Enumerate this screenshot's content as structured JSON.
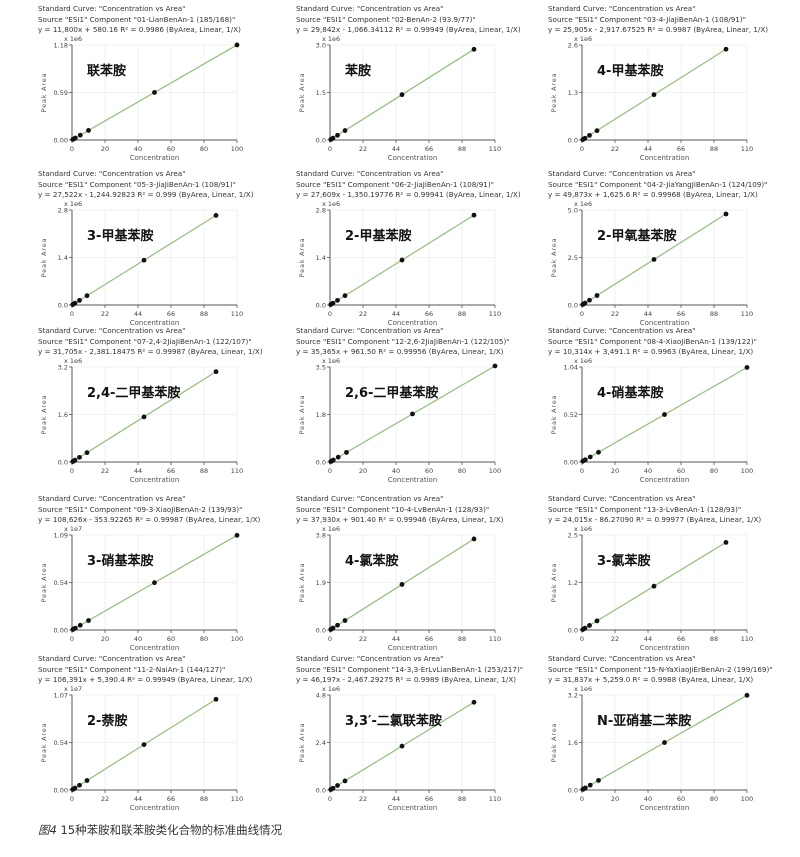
{
  "chart_data": [
    {
      "type": "scatter",
      "title": "Standard Curve: \"Concentration vs Area\"",
      "source": "Source \"ESI1\" Component \"01-LianBenAn-1 (185/168)\"",
      "equation": "y = 11,800x + 580.16   R² = 0.9986  (ByArea, Linear, 1/X)",
      "slope": 11800,
      "intercept": 580.16,
      "label": "联苯胺",
      "multiplier": "x 1e6",
      "scale": 1000000,
      "xlim": [
        0,
        100
      ],
      "xticks": [
        "0",
        "20",
        "40",
        "60",
        "80",
        "100"
      ],
      "ylim": [
        0,
        1.18
      ],
      "yticks": [
        "0.00",
        "0.59",
        "1.18"
      ],
      "x": [
        0.5,
        1,
        2,
        5,
        10,
        50,
        100
      ],
      "xlabel": "Concentration",
      "ylabel": "Peak Area"
    },
    {
      "type": "scatter",
      "title": "Standard Curve: \"Concentration vs Area\"",
      "source": "Source \"ESI1\" Component \"02-BenAn-2 (93.9/77)\"",
      "equation": "y = 29,842x - 1,066.34112   R² = 0.99949  (ByArea, Linear, 1/X)",
      "slope": 29842,
      "intercept": -1066.34,
      "label": "苯胺",
      "multiplier": "x 1e6",
      "scale": 1000000,
      "xlim": [
        0,
        110
      ],
      "xticks": [
        "0",
        "22",
        "44",
        "66",
        "88",
        "110"
      ],
      "ylim": [
        0,
        3.0
      ],
      "yticks": [
        "0.0",
        "1.5",
        "3.0"
      ],
      "x": [
        0.5,
        1,
        2,
        5,
        10,
        48,
        96
      ],
      "xlabel": "Concentration",
      "ylabel": "Peak Area"
    },
    {
      "type": "scatter",
      "title": "Standard Curve: \"Concentration vs Area\"",
      "source": "Source \"ESI1\" Component \"03-4-JiaJiBenAn-1 (108/91)\"",
      "equation": "y = 25,905x - 2,917.67525   R² = 0.9987  (ByArea, Linear, 1/X)",
      "slope": 25905,
      "intercept": -2917.68,
      "label": "4-甲基苯胺",
      "multiplier": "x 1e6",
      "scale": 1000000,
      "xlim": [
        0,
        110
      ],
      "xticks": [
        "0",
        "22",
        "44",
        "66",
        "88",
        "110"
      ],
      "ylim": [
        0,
        2.6
      ],
      "yticks": [
        "0.0",
        "1.3",
        "2.6"
      ],
      "x": [
        0.5,
        1,
        2,
        5,
        10,
        48,
        96
      ],
      "xlabel": "Concentration",
      "ylabel": "Peak Area"
    },
    {
      "type": "scatter",
      "title": "Standard Curve: \"Concentration vs Area\"",
      "source": "Source \"ESI1\" Component \"05-3-JiaJiBenAn-1 (108/91)\"",
      "equation": "y = 27,522x - 1,244.92823   R² = 0.999  (ByArea, Linear, 1/X)",
      "slope": 27522,
      "intercept": -1244.93,
      "label": "3-甲基苯胺",
      "multiplier": "x 1e6",
      "scale": 1000000,
      "xlim": [
        0,
        110
      ],
      "xticks": [
        "0",
        "22",
        "44",
        "66",
        "88",
        "110"
      ],
      "ylim": [
        0,
        2.8
      ],
      "yticks": [
        "0.0",
        "1.4",
        "2.8"
      ],
      "x": [
        0.5,
        1,
        2,
        5,
        10,
        48,
        96
      ],
      "xlabel": "Concentration",
      "ylabel": "Peak Area"
    },
    {
      "type": "scatter",
      "title": "Standard Curve: \"Concentration vs Area\"",
      "source": "Source \"ESI1\" Component \"06-2-JiaJiBenAn-1 (108/91)\"",
      "equation": "y = 27,609x - 1,350.19776   R² = 0.99941  (ByArea, Linear, 1/X)",
      "slope": 27609,
      "intercept": -1350.2,
      "label": "2-甲基苯胺",
      "multiplier": "x 1e6",
      "scale": 1000000,
      "xlim": [
        0,
        110
      ],
      "xticks": [
        "0",
        "22",
        "44",
        "66",
        "88",
        "110"
      ],
      "ylim": [
        0,
        2.8
      ],
      "yticks": [
        "0.0",
        "1.4",
        "2.8"
      ],
      "x": [
        0.5,
        1,
        2,
        5,
        10,
        48,
        96
      ],
      "xlabel": "Concentration",
      "ylabel": "Peak Area"
    },
    {
      "type": "scatter",
      "title": "Standard Curve: \"Concentration vs Area\"",
      "source": "Source \"ESI1\" Component \"04-2-JiaYangJiBenAn-1 (124/109)\"",
      "equation": "y = 49,873x + 1,625.6   R² = 0.99968  (ByArea, Linear, 1/X)",
      "slope": 49873,
      "intercept": 1625.6,
      "label": "2-甲氧基苯胺",
      "multiplier": "x 1e6",
      "scale": 1000000,
      "xlim": [
        0,
        110
      ],
      "xticks": [
        "0",
        "22",
        "44",
        "66",
        "88",
        "110"
      ],
      "ylim": [
        0,
        5.0
      ],
      "yticks": [
        "0.0",
        "2.5",
        "5.0"
      ],
      "x": [
        0.5,
        1,
        2,
        5,
        10,
        48,
        96
      ],
      "xlabel": "Concentration",
      "ylabel": "Peak Area"
    },
    {
      "type": "scatter",
      "title": "Standard Curve: \"Concentration vs Area\"",
      "source": "Source \"ESI1\" Component \"07-2,4-2JiaJiBenAn-1 (122/107)\"",
      "equation": "y = 31,705x - 2,381.18475   R² = 0.99987  (ByArea, Linear, 1/X)",
      "slope": 31705,
      "intercept": -2381.18,
      "label": "2,4-二甲基苯胺",
      "multiplier": "x 1e6",
      "scale": 1000000,
      "xlim": [
        0,
        110
      ],
      "xticks": [
        "0",
        "22",
        "44",
        "66",
        "88",
        "110"
      ],
      "ylim": [
        0,
        3.2
      ],
      "yticks": [
        "0.0",
        "1.6",
        "3.2"
      ],
      "x": [
        0.5,
        1,
        2,
        5,
        10,
        48,
        96
      ],
      "xlabel": "Concentration",
      "ylabel": "Peak Area"
    },
    {
      "type": "scatter",
      "title": "Standard Curve: \"Concentration vs Area\"",
      "source": "Source \"ESI1\" Component \"12-2,6-2JiaJiBenAn-1 (122/105)\"",
      "equation": "y = 35,365x + 961.50   R² = 0.99956  (ByArea, Linear, 1/X)",
      "slope": 35365,
      "intercept": 961.5,
      "label": "2,6-二甲基苯胺",
      "multiplier": "x 1e6",
      "scale": 1000000,
      "xlim": [
        0,
        100
      ],
      "xticks": [
        "0",
        "20",
        "40",
        "60",
        "80",
        "100"
      ],
      "ylim": [
        0,
        3.5
      ],
      "yticks": [
        "0.0",
        "1.8",
        "3.5"
      ],
      "x": [
        0.5,
        1,
        2,
        5,
        10,
        50,
        100
      ],
      "xlabel": "Concentration",
      "ylabel": "Peak Area"
    },
    {
      "type": "scatter",
      "title": "Standard Curve: \"Concentration vs Area\"",
      "source": "Source \"ESI1\" Component \"08-4-XiaoJiBenAn-1 (139/122)\"",
      "equation": "y = 10,314x + 3,491.1   R² = 0.9963  (ByArea, Linear, 1/X)",
      "slope": 10314,
      "intercept": 3491.1,
      "label": "4-硝基苯胺",
      "multiplier": "x 1e6",
      "scale": 1000000,
      "xlim": [
        0,
        100
      ],
      "xticks": [
        "0",
        "20",
        "40",
        "60",
        "80",
        "100"
      ],
      "ylim": [
        0,
        1.04
      ],
      "yticks": [
        "0.00",
        "0.52",
        "1.04"
      ],
      "x": [
        0.5,
        1,
        2,
        5,
        10,
        50,
        100
      ],
      "xlabel": "Concentration",
      "ylabel": "Peak Area"
    },
    {
      "type": "scatter",
      "title": "Standard Curve: \"Concentration vs Area\"",
      "source": "Source \"ESI1\" Component \"09-3-XiaoJiBenAn-2 (139/93)\"",
      "equation": "y = 108,626x - 353.92265   R² = 0.99987  (ByArea, Linear, 1/X)",
      "slope": 108626,
      "intercept": -353.92,
      "label": "3-硝基苯胺",
      "multiplier": "x 1e7",
      "scale": 10000000,
      "xlim": [
        0,
        100
      ],
      "xticks": [
        "0",
        "20",
        "40",
        "60",
        "80",
        "100"
      ],
      "ylim": [
        0,
        1.09
      ],
      "yticks": [
        "0.00",
        "0.54",
        "1.09"
      ],
      "x": [
        0.5,
        1,
        2,
        5,
        10,
        50,
        100
      ],
      "xlabel": "Concentration",
      "ylabel": "Peak Area"
    },
    {
      "type": "scatter",
      "title": "Standard Curve: \"Concentration vs Area\"",
      "source": "Source \"ESI1\" Component \"10-4-LvBenAn-1 (128/93)\"",
      "equation": "y = 37,930x + 901.40   R² = 0.99946  (ByArea, Linear, 1/X)",
      "slope": 37930,
      "intercept": 901.4,
      "label": "4-氯苯胺",
      "multiplier": "x 1e6",
      "scale": 1000000,
      "xlim": [
        0,
        110
      ],
      "xticks": [
        "0",
        "22",
        "44",
        "66",
        "88",
        "110"
      ],
      "ylim": [
        0,
        3.8
      ],
      "yticks": [
        "0.0",
        "1.9",
        "3.8"
      ],
      "x": [
        0.5,
        1,
        2,
        5,
        10,
        48,
        96
      ],
      "xlabel": "Concentration",
      "ylabel": "Peak Area"
    },
    {
      "type": "scatter",
      "title": "Standard Curve: \"Concentration vs Area\"",
      "source": "Source \"ESI1\" Component \"13-3-LvBenAn-1 (128/93)\"",
      "equation": "y = 24,015x - 86.27090   R² = 0.99977  (ByArea, Linear, 1/X)",
      "slope": 24015,
      "intercept": -86.27,
      "label": "3-氯苯胺",
      "multiplier": "x 1e6",
      "scale": 1000000,
      "xlim": [
        0,
        110
      ],
      "xticks": [
        "0",
        "22",
        "44",
        "66",
        "88",
        "110"
      ],
      "ylim": [
        0,
        2.5
      ],
      "yticks": [
        "0.0",
        "1.2",
        "2.5"
      ],
      "x": [
        0.5,
        1,
        2,
        5,
        10,
        48,
        96
      ],
      "xlabel": "Concentration",
      "ylabel": "Peak Area"
    },
    {
      "type": "scatter",
      "title": "Standard Curve: \"Concentration vs Area\"",
      "source": "Source \"ESI1\" Component \"11-2-NaiAn-1 (144/127)\"",
      "equation": "y = 106,391x + 5,390.4   R² = 0.99949  (ByArea, Linear, 1/X)",
      "slope": 106391,
      "intercept": 5390.4,
      "label": "2-萘胺",
      "multiplier": "x 1e7",
      "scale": 10000000,
      "xlim": [
        0,
        110
      ],
      "xticks": [
        "0",
        "22",
        "44",
        "66",
        "88",
        "110"
      ],
      "ylim": [
        0,
        1.07
      ],
      "yticks": [
        "0.00",
        "0.54",
        "1.07"
      ],
      "x": [
        0.5,
        1,
        2,
        5,
        10,
        48,
        96
      ],
      "xlabel": "Concentration",
      "ylabel": "Peak Area"
    },
    {
      "type": "scatter",
      "title": "Standard Curve: \"Concentration vs Area\"",
      "source": "Source \"ESI1\" Component \"14-3,3-ErLvLianBenAn-1 (253/217)\"",
      "equation": "y = 46,197x - 2,467.29275   R² = 0.9989  (ByArea, Linear, 1/X)",
      "slope": 46197,
      "intercept": -2467.29,
      "label": "3,3′-二氯联苯胺",
      "multiplier": "x 1e6",
      "scale": 1000000,
      "xlim": [
        0,
        110
      ],
      "xticks": [
        "0",
        "22",
        "44",
        "66",
        "88",
        "110"
      ],
      "ylim": [
        0,
        4.8
      ],
      "yticks": [
        "0.0",
        "2.4",
        "4.8"
      ],
      "x": [
        0.5,
        1,
        2,
        5,
        10,
        48,
        96
      ],
      "xlabel": "Concentration",
      "ylabel": "Peak Area"
    },
    {
      "type": "scatter",
      "title": "Standard Curve: \"Concentration vs Area\"",
      "source": "Source \"ESI1\" Component \"15-N-YaXiaoJiErBenAn-2 (199/169)\"",
      "equation": "y = 31,837x + 5,259.0   R² = 0.9988  (ByArea, Linear, 1/X)",
      "slope": 31837,
      "intercept": 5259.0,
      "label": "N-亚硝基二苯胺",
      "multiplier": "x 1e6",
      "scale": 1000000,
      "xlim": [
        0,
        100
      ],
      "xticks": [
        "0",
        "20",
        "40",
        "60",
        "80",
        "100"
      ],
      "ylim": [
        0,
        3.2
      ],
      "yticks": [
        "0.0",
        "1.6",
        "3.2"
      ],
      "x": [
        0.5,
        1,
        2,
        5,
        10,
        50,
        100
      ],
      "xlabel": "Concentration",
      "ylabel": "Peak Area"
    }
  ],
  "caption": {
    "figure": "图4",
    "text": " 15种苯胺和联苯胺类化合物的标准曲线情况"
  },
  "colors": {
    "line": "#8fc07a",
    "point": "#111111",
    "grid": "#ececec",
    "axis": "#555555"
  }
}
